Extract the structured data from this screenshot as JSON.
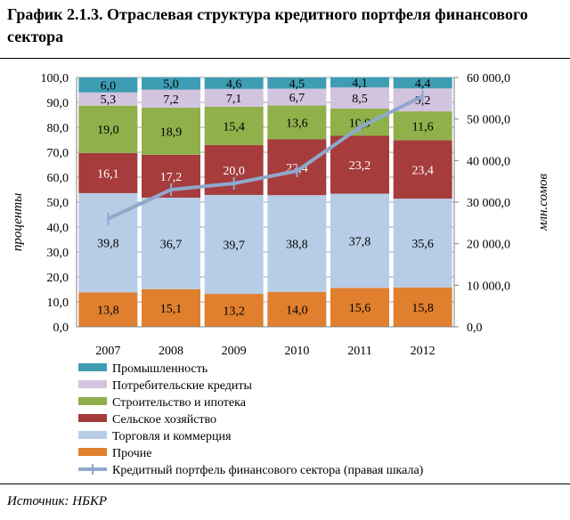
{
  "title": "График 2.1.3. Отраслевая структура кредитного портфеля финансового сектора",
  "source": "Источник: НБКР",
  "chart_data": {
    "type": "bar",
    "stacked": true,
    "categories": [
      "2007",
      "2008",
      "2009",
      "2010",
      "2011",
      "2012"
    ],
    "ylabel": "проценты",
    "y2label": "млн.сомов",
    "ylim": [
      0,
      100
    ],
    "y2lim": [
      0,
      60000
    ],
    "yticks": [
      "0,0",
      "10,0",
      "20,0",
      "30,0",
      "40,0",
      "50,0",
      "60,0",
      "70,0",
      "80,0",
      "90,0",
      "100,0"
    ],
    "y2ticks": [
      "0,0",
      "10 000,0",
      "20 000,0",
      "30 000,0",
      "40 000,0",
      "50 000,0",
      "60 000,0"
    ],
    "grid": true,
    "legend_position": "bottom",
    "series": [
      {
        "name": "Прочие",
        "color": "#e07f2e",
        "values": [
          13.8,
          15.1,
          13.2,
          14.0,
          15.6,
          15.8
        ],
        "labels": [
          "13,8",
          "15,1",
          "13,2",
          "14,0",
          "15,6",
          "15,8"
        ]
      },
      {
        "name": "Торговля и коммерция",
        "color": "#b7cde6",
        "values": [
          39.8,
          36.7,
          39.7,
          38.8,
          37.8,
          35.6
        ],
        "labels": [
          "39,8",
          "36,7",
          "39,7",
          "38,8",
          "37,8",
          "35,6"
        ]
      },
      {
        "name": "Сельское хозяйство",
        "color": "#a63c3c",
        "values": [
          16.1,
          17.2,
          20.0,
          22.4,
          23.2,
          23.4
        ],
        "labels": [
          "16,1",
          "17,2",
          "20,0",
          "22,4",
          "23,2",
          "23,4"
        ]
      },
      {
        "name": "Строительство  и ипотека",
        "color": "#8fb04b",
        "values": [
          19.0,
          18.9,
          15.4,
          13.6,
          10.9,
          11.6
        ],
        "labels": [
          "19,0",
          "18,9",
          "15,4",
          "13,6",
          "10,9",
          "11,6"
        ]
      },
      {
        "name": "Потребительские  кредиты",
        "color": "#d2c3de",
        "values": [
          5.3,
          7.2,
          7.1,
          6.7,
          8.5,
          9.2
        ],
        "labels": [
          "5,3",
          "7,2",
          "7,1",
          "6,7",
          "8,5",
          "9,2"
        ]
      },
      {
        "name": "Промышленность",
        "color": "#3e9db3",
        "values": [
          6.0,
          5.0,
          4.6,
          4.5,
          4.1,
          4.4
        ],
        "labels": [
          "6,0",
          "5,0",
          "4,6",
          "4,5",
          "4,1",
          "4,4"
        ]
      }
    ],
    "line_series": {
      "name": "Кредитный  портфель  финансового  сектора  (правая  шкала)",
      "axis": "right",
      "color": "#8fa8cc",
      "values": [
        26000,
        33000,
        34500,
        37500,
        48000,
        55500
      ]
    },
    "legend_order": [
      "Промышленность",
      "Потребительские  кредиты",
      "Строительство  и ипотека",
      "Сельское хозяйство",
      "Торговля и коммерция",
      "Прочие",
      "Кредитный  портфель  финансового  сектора  (правая  шкала)"
    ]
  }
}
